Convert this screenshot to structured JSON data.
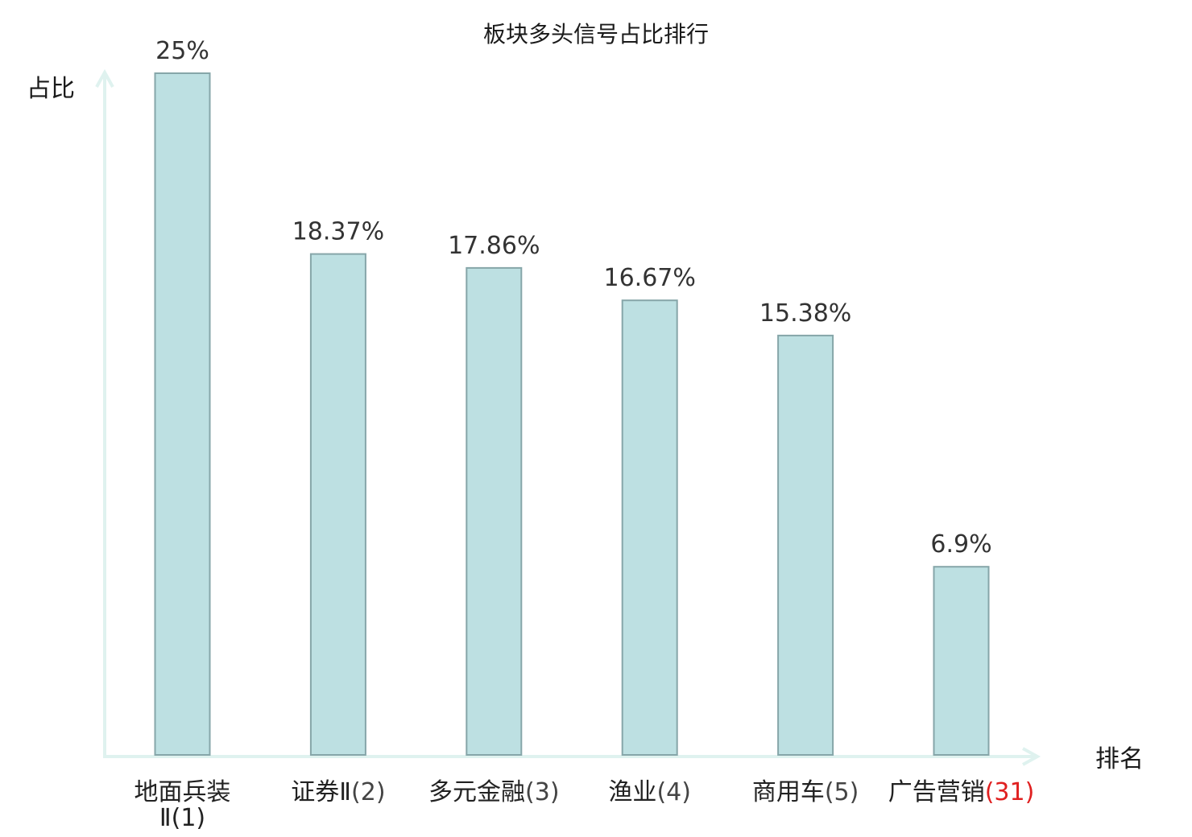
{
  "chart_data": {
    "type": "bar",
    "title": "板块多头信号占比排行",
    "ylabel": "占比",
    "xlabel": "排名",
    "categories": [
      {
        "name": "地面兵装Ⅱ",
        "rank": "(1)",
        "highlight": false
      },
      {
        "name": "证券Ⅱ",
        "rank": "(2)",
        "highlight": false
      },
      {
        "name": "多元金融",
        "rank": "(3)",
        "highlight": false
      },
      {
        "name": "渔业",
        "rank": "(4)",
        "highlight": false
      },
      {
        "name": "商用车",
        "rank": "(5)",
        "highlight": false
      },
      {
        "name": "广告营销",
        "rank": "(31)",
        "highlight": true
      }
    ],
    "values": [
      25,
      18.37,
      17.86,
      16.67,
      15.38,
      6.9
    ],
    "value_labels": [
      "25%",
      "18.37%",
      "17.86%",
      "16.67%",
      "15.38%",
      "6.9%"
    ],
    "ylim": [
      0,
      25
    ],
    "grid": false,
    "legend": "none"
  },
  "colors": {
    "bar_fill": "#bde0e2",
    "bar_stroke": "#86a6a9",
    "axis": "#dff2ef",
    "text": "#222222",
    "highlight": "#e02020"
  }
}
